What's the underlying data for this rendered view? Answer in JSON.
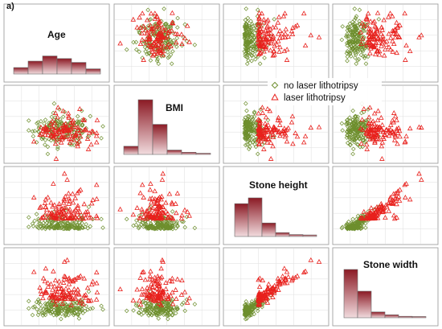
{
  "panel_label": "a)",
  "colors": {
    "no_laser": "#6e8f2e",
    "laser": "#e8211d",
    "panel_border": "#a0a0a0",
    "grid": "#e3e3e3",
    "hist_top": "#8b1a24",
    "hist_bottom": "#f1dbde"
  },
  "legend": {
    "items": [
      {
        "label": "no laser lithotripsy",
        "marker": "diamond",
        "color": "#6e8f2e"
      },
      {
        "label": "laser lithotripsy",
        "marker": "triangle",
        "color": "#e8211d"
      }
    ],
    "placement": "center"
  },
  "chart_data": {
    "type": "scatter",
    "variables": [
      "Age",
      "BMI",
      "Stone height",
      "Stone width"
    ],
    "diagonal": "histogram",
    "series": [
      {
        "name": "no laser lithotripsy",
        "marker": "diamond",
        "color": "#6e8f2e"
      },
      {
        "name": "laser lithotripsy",
        "marker": "triangle",
        "color": "#e8211d"
      }
    ],
    "histograms": {
      "Age": [
        0.25,
        0.5,
        0.7,
        0.6,
        0.45,
        0.2
      ],
      "BMI": [
        0.15,
        1.0,
        0.55,
        0.08,
        0.04,
        0.02
      ],
      "Stone height": [
        0.85,
        1.0,
        0.35,
        0.1,
        0.05,
        0.04
      ],
      "Stone width": [
        1.0,
        0.55,
        0.12,
        0.06,
        0.03,
        0.02
      ]
    },
    "grid": true
  }
}
